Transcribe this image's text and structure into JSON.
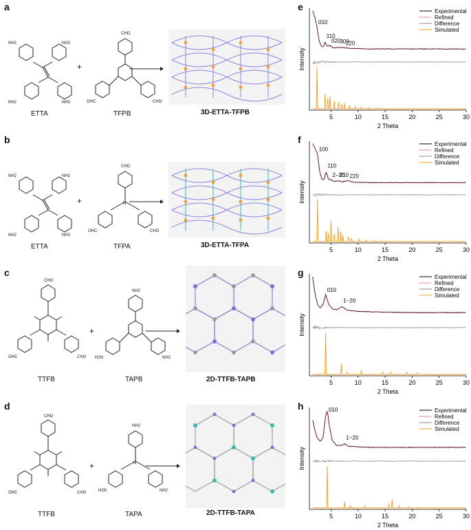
{
  "panels": [
    {
      "letter": "a",
      "monomer1": {
        "name": "ETTA",
        "groups": [
          "NH2",
          "NH2",
          "NH2",
          "NH2"
        ]
      },
      "monomer2": {
        "name": "TFPB",
        "groups": [
          "CHO",
          "OHC",
          "CHO"
        ]
      },
      "product": "3D-ETTA-TFPB"
    },
    {
      "letter": "b",
      "monomer1": {
        "name": "ETTA",
        "groups": [
          "NH2",
          "NH2",
          "NH2",
          "NH2"
        ]
      },
      "monomer2": {
        "name": "TFPA",
        "groups": [
          "CHO",
          "OHC",
          "CHO"
        ]
      },
      "product": "3D-ETTA-TFPA"
    },
    {
      "letter": "c",
      "monomer1": {
        "name": "TTFB",
        "groups": [
          "CHO",
          "OHC",
          "CHO"
        ]
      },
      "monomer2": {
        "name": "TAPB",
        "groups": [
          "NH2",
          "H2N",
          "NH2"
        ]
      },
      "product": "2D-TTFB-TAPB"
    },
    {
      "letter": "d",
      "monomer1": {
        "name": "TTFB",
        "groups": [
          "CHO",
          "OHC",
          "CHO"
        ]
      },
      "monomer2": {
        "name": "TAPA",
        "groups": [
          "NH2",
          "H2N",
          "NH2"
        ]
      },
      "product": "2D-TTFB-TAPA"
    }
  ],
  "plus_sign": "+",
  "colors": {
    "experimental": "#000000",
    "refined": "#e8213f",
    "difference": "#8a8a8a",
    "simulated": "#f39a1e",
    "framework_bg": "#f3f3f3",
    "node_purple": "#7a72d8",
    "node_orange": "#f0a040",
    "node_teal": "#37b7b0"
  },
  "chart_data": [
    {
      "panel": "e",
      "type": "line",
      "xlabel": "2 Theta",
      "ylabel": "Intensity",
      "xlim": [
        1,
        30
      ],
      "xticks": [
        5,
        10,
        15,
        20,
        25,
        30
      ],
      "legend": [
        "Experimental",
        "Refined",
        "Difference",
        "Simulated"
      ],
      "legend_position": "top-right",
      "peaks": [
        {
          "label": "010",
          "x": 2.4
        },
        {
          "label": "110",
          "x": 3.9
        },
        {
          "label": "020",
          "x": 4.8
        },
        {
          "label": "300",
          "x": 6.4
        },
        {
          "label": "220",
          "x": 7.5
        }
      ],
      "experimental": {
        "x": [
          1.6,
          2.0,
          2.4,
          2.8,
          3.2,
          3.6,
          3.9,
          4.3,
          4.8,
          5.5,
          6.4,
          7.5,
          9,
          12,
          16,
          20,
          25,
          30
        ],
        "y": [
          1.0,
          0.85,
          0.6,
          0.25,
          0.12,
          0.1,
          0.22,
          0.12,
          0.14,
          0.07,
          0.09,
          0.08,
          0.06,
          0.05,
          0.05,
          0.05,
          0.05,
          0.05
        ]
      },
      "simulated_peaks": {
        "x": [
          2.4,
          3.9,
          4.4,
          4.8,
          5.6,
          6.4,
          7.0,
          7.5,
          8.4,
          9.5,
          10.6,
          12,
          13.5
        ],
        "y": [
          1.0,
          0.35,
          0.25,
          0.3,
          0.18,
          0.16,
          0.12,
          0.14,
          0.08,
          0.05,
          0.04,
          0.03,
          0.02
        ]
      }
    },
    {
      "panel": "f",
      "type": "line",
      "xlabel": "2 Theta",
      "ylabel": "Intensity",
      "xlim": [
        1,
        30
      ],
      "xticks": [
        5,
        10,
        15,
        20,
        25,
        30
      ],
      "legend": [
        "Experimental",
        "Refined",
        "Difference",
        "Simulated"
      ],
      "legend_position": "top-right",
      "peaks": [
        {
          "label": "100",
          "x": 2.5
        },
        {
          "label": "110",
          "x": 4.1
        },
        {
          "label": "2−20",
          "x": 5.0
        },
        {
          "label": "210",
          "x": 6.3
        },
        {
          "label": "220",
          "x": 8.2
        }
      ],
      "experimental": {
        "x": [
          1.6,
          2.0,
          2.5,
          2.9,
          3.3,
          3.7,
          4.1,
          4.5,
          5.0,
          5.5,
          6.3,
          7.0,
          8.2,
          9,
          12,
          16,
          20,
          25,
          30
        ],
        "y": [
          1.0,
          0.9,
          0.75,
          0.3,
          0.12,
          0.1,
          0.3,
          0.12,
          0.1,
          0.06,
          0.07,
          0.05,
          0.08,
          0.04,
          0.03,
          0.03,
          0.03,
          0.03,
          0.03
        ]
      },
      "simulated_peaks": {
        "x": [
          2.5,
          4.1,
          4.5,
          5.0,
          5.6,
          6.3,
          6.8,
          7.2,
          8.2,
          8.8,
          10.2,
          11.5,
          13,
          14.5
        ],
        "y": [
          1.0,
          0.25,
          0.2,
          0.5,
          0.18,
          0.35,
          0.25,
          0.15,
          0.12,
          0.08,
          0.06,
          0.04,
          0.03,
          0.02
        ]
      }
    },
    {
      "panel": "g",
      "type": "line",
      "xlabel": "2 Theta",
      "ylabel": "Intensity",
      "xlim": [
        1,
        30
      ],
      "xticks": [
        5,
        10,
        15,
        20,
        25,
        30
      ],
      "legend": [
        "Experimental",
        "Refined",
        "Difference",
        "Simulated"
      ],
      "legend_position": "top-right",
      "peaks": [
        {
          "label": "010",
          "x": 4.0
        },
        {
          "label": "1−20",
          "x": 7.0
        }
      ],
      "experimental": {
        "x": [
          1.6,
          2.0,
          2.5,
          3.0,
          3.5,
          4.0,
          4.6,
          5.2,
          6.0,
          7.0,
          8.0,
          10,
          13,
          16,
          20,
          25,
          30
        ],
        "y": [
          1.0,
          0.6,
          0.3,
          0.22,
          0.3,
          0.55,
          0.3,
          0.2,
          0.17,
          0.25,
          0.16,
          0.13,
          0.12,
          0.11,
          0.1,
          0.1,
          0.1
        ]
      },
      "simulated_peaks": {
        "x": [
          4.0,
          6.9,
          8.0,
          10.6,
          14.5,
          16,
          19,
          21
        ],
        "y": [
          1.0,
          0.25,
          0.05,
          0.1,
          0.06,
          0.06,
          0.05,
          0.04
        ]
      }
    },
    {
      "panel": "h",
      "type": "line",
      "xlabel": "2 Theta",
      "ylabel": "Intensity",
      "xlim": [
        1,
        30
      ],
      "xticks": [
        5,
        10,
        15,
        20,
        25,
        30
      ],
      "legend": [
        "Experimental",
        "Refined",
        "Difference",
        "Simulated"
      ],
      "legend_position": "top-right",
      "peaks": [
        {
          "label": "010",
          "x": 4.3
        },
        {
          "label": "1−20",
          "x": 7.5
        }
      ],
      "experimental": {
        "x": [
          1.6,
          2.0,
          2.5,
          3.0,
          3.5,
          4.0,
          4.3,
          4.7,
          5.2,
          6.0,
          7.0,
          7.5,
          8.2,
          10,
          13,
          16,
          20,
          25,
          30
        ],
        "y": [
          0.75,
          0.5,
          0.3,
          0.22,
          0.3,
          0.85,
          1.0,
          0.6,
          0.25,
          0.12,
          0.12,
          0.16,
          0.1,
          0.08,
          0.07,
          0.07,
          0.07,
          0.07,
          0.07
        ]
      },
      "simulated_peaks": {
        "x": [
          4.3,
          7.5,
          8.6,
          11.2,
          15.7,
          16.3,
          17.6,
          19.5,
          21
        ],
        "y": [
          1.0,
          0.15,
          0.06,
          0.05,
          0.12,
          0.2,
          0.05,
          0.03,
          0.02
        ]
      }
    }
  ]
}
